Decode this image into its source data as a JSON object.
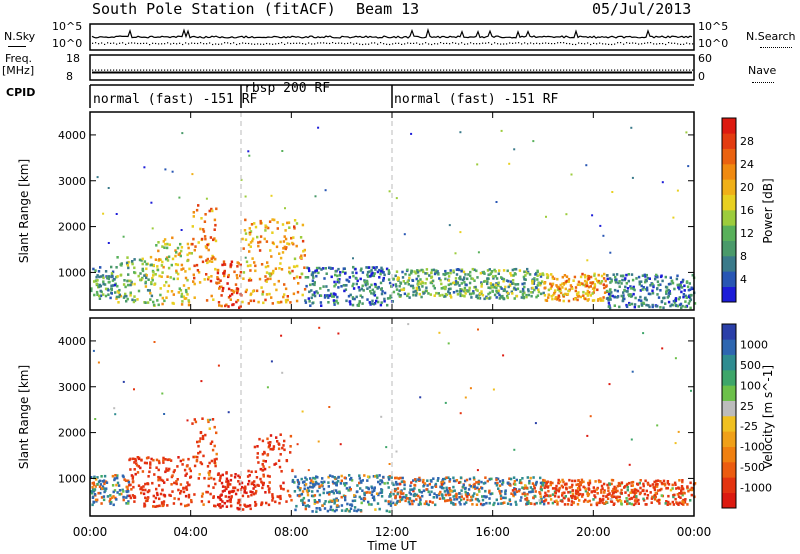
{
  "header": {
    "station": "South Pole Station (fitACF)",
    "beam": "Beam 13",
    "date": "05/Jul/2013"
  },
  "strips": {
    "nsky_label": "N.Sky",
    "nsky_tick_top": "10^5",
    "nsky_tick_bottom": "10^0",
    "nsearch_label": "N.Search",
    "nsearch_tick_top": "10^5",
    "nsearch_tick_bottom": "10^0",
    "freq_label_1": "Freq.",
    "freq_label_2": "[MHz]",
    "freq_tick_top": "18",
    "freq_tick_bottom": "8",
    "nave_label": "Nave",
    "nave_tick_top": "60",
    "nave_tick_bottom": "0",
    "cpid_label": "CPID"
  },
  "modes": [
    {
      "label": "normal (fast) -151 RF",
      "start_hour": 0
    },
    {
      "label": "rbsp 200 RF",
      "start_hour": 6
    },
    {
      "label": "normal (fast) -151 RF",
      "start_hour": 12
    }
  ],
  "x_axis": {
    "title": "Time UT",
    "range_hours": [
      0,
      24
    ],
    "ticks": [
      {
        "hour": 0,
        "label": "00:00"
      },
      {
        "hour": 4,
        "label": "04:00"
      },
      {
        "hour": 8,
        "label": "08:00"
      },
      {
        "hour": 12,
        "label": "12:00"
      },
      {
        "hour": 16,
        "label": "16:00"
      },
      {
        "hour": 20,
        "label": "20:00"
      },
      {
        "hour": 24,
        "label": "00:00"
      }
    ]
  },
  "y_axis": {
    "title": "Slant Range [km]",
    "range_km": [
      180,
      4500
    ],
    "ticks": [
      1000,
      2000,
      3000,
      4000
    ]
  },
  "power_scale": {
    "title": "Power [dB]",
    "ticks": [
      "4",
      "8",
      "12",
      "16",
      "20",
      "24",
      "28"
    ],
    "colors": [
      "#1c1cd8",
      "#2856b4",
      "#3a7a8a",
      "#4a9a6a",
      "#58b05a",
      "#9ccc3c",
      "#e8d020",
      "#f0b018",
      "#f08a10",
      "#ea6210",
      "#e33c10",
      "#dd1a10"
    ]
  },
  "velocity_scale": {
    "title": "Velocity [m s^-1]",
    "ticks": [
      "1000",
      "500",
      "100",
      "25",
      "-25",
      "-100",
      "-500",
      "-1000"
    ],
    "colors": [
      "#2a3fa8",
      "#2e66b0",
      "#2f8c90",
      "#3ea66a",
      "#6cc04a",
      "#bcbcbc",
      "#f0c020",
      "#f0a018",
      "#f08010",
      "#ec5c10",
      "#e43410",
      "#dc1a10"
    ]
  },
  "chart_data": {
    "type": "heatmap",
    "title": "South Pole Station (fitACF) Beam 13 05/Jul/2013",
    "xlabel": "Time UT",
    "ylabel": "Slant Range [km]",
    "x_range_hours": [
      0,
      24
    ],
    "y_range_km": [
      180,
      4500
    ],
    "panels": [
      {
        "name": "Power",
        "colorbar_title": "Power [dB]",
        "color_range_db": [
          0,
          30
        ],
        "echo_regions": [
          {
            "t0": 0.0,
            "t1": 1.0,
            "r0": 450,
            "r1": 1150,
            "level": 8
          },
          {
            "t0": 1.0,
            "t1": 2.5,
            "r0": 350,
            "r1": 1400,
            "level": 12
          },
          {
            "t0": 2.5,
            "t1": 4.0,
            "r0": 300,
            "r1": 1800,
            "level": 16
          },
          {
            "t0": 4.0,
            "t1": 5.0,
            "r0": 400,
            "r1": 2500,
            "level": 22
          },
          {
            "t0": 5.0,
            "t1": 6.0,
            "r0": 250,
            "r1": 1300,
            "level": 26
          },
          {
            "t0": 6.0,
            "t1": 8.5,
            "r0": 350,
            "r1": 2200,
            "level": 20
          },
          {
            "t0": 8.5,
            "t1": 12.0,
            "r0": 300,
            "r1": 1150,
            "level": 6
          },
          {
            "t0": 12.0,
            "t1": 18.0,
            "r0": 450,
            "r1": 1100,
            "level": 10
          },
          {
            "t0": 18.0,
            "t1": 20.5,
            "r0": 400,
            "r1": 1000,
            "level": 20
          },
          {
            "t0": 20.5,
            "t1": 24.0,
            "r0": 250,
            "r1": 1000,
            "level": 6
          }
        ]
      },
      {
        "name": "Velocity",
        "colorbar_title": "Velocity [m s^-1]",
        "color_range_ms": [
          -1000,
          1000
        ],
        "echo_regions": [
          {
            "t0": 0.0,
            "t1": 1.5,
            "r0": 450,
            "r1": 1100,
            "velocity": 60
          },
          {
            "t0": 1.5,
            "t1": 4.0,
            "r0": 400,
            "r1": 1500,
            "velocity": -200
          },
          {
            "t0": 4.0,
            "t1": 5.0,
            "r0": 400,
            "r1": 2400,
            "velocity": -150
          },
          {
            "t0": 5.0,
            "t1": 6.5,
            "r0": 350,
            "r1": 1200,
            "velocity": -300
          },
          {
            "t0": 6.5,
            "t1": 8.0,
            "r0": 400,
            "r1": 2000,
            "velocity": -200
          },
          {
            "t0": 8.0,
            "t1": 12.0,
            "r0": 300,
            "r1": 1100,
            "velocity": 80
          },
          {
            "t0": 12.0,
            "t1": 18.0,
            "r0": 450,
            "r1": 1050,
            "velocity": 40
          },
          {
            "t0": 18.0,
            "t1": 24.0,
            "r0": 450,
            "r1": 1000,
            "velocity": -120
          }
        ]
      }
    ],
    "mode_boundaries_hours": [
      6,
      12
    ],
    "freq_mhz_level": 11,
    "nave_level": 30
  }
}
